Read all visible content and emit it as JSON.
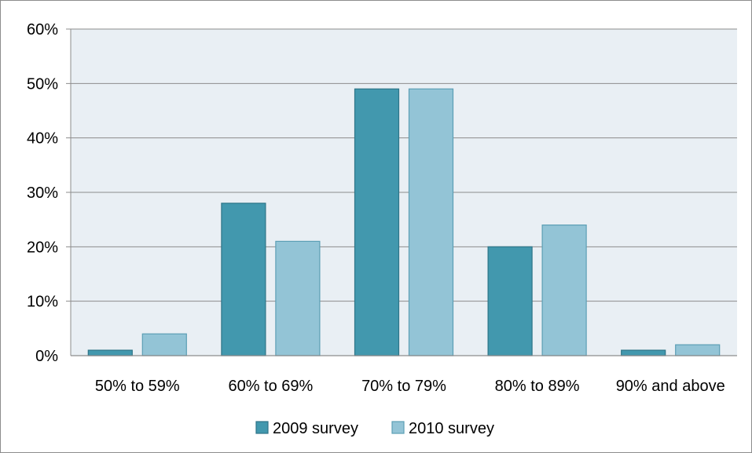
{
  "chart_data": {
    "type": "bar",
    "title": "",
    "xlabel": "",
    "ylabel": "",
    "categories": [
      "50% to 59%",
      "60% to 69%",
      "70% to 79%",
      "80% to 89%",
      "90% and above"
    ],
    "series": [
      {
        "name": "2009 survey",
        "values": [
          1,
          28,
          49,
          20,
          1
        ],
        "color": "#4298AE",
        "stroke": "#2E7588"
      },
      {
        "name": "2010 survey",
        "values": [
          4,
          21,
          49,
          24,
          2
        ],
        "color": "#93C4D6",
        "stroke": "#5C9FB5"
      }
    ],
    "ylim": [
      0,
      60
    ],
    "yticks": [
      0,
      10,
      20,
      30,
      40,
      50,
      60
    ],
    "ytick_labels": [
      "0%",
      "10%",
      "20%",
      "30%",
      "40%",
      "50%",
      "60%"
    ],
    "grid": true,
    "legend_position": "bottom",
    "plot_background": "#E9EFF4",
    "gridline_color": "#8C8C8C"
  }
}
